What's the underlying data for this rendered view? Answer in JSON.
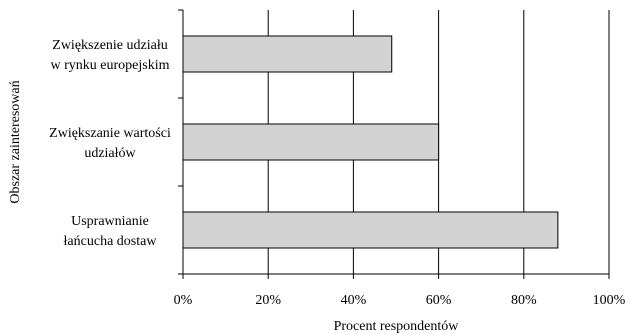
{
  "chart_data": {
    "type": "bar",
    "orientation": "horizontal",
    "title": "",
    "xlabel": "Procent respondentów",
    "ylabel": "Obszar zainteresowań",
    "categories": [
      [
        "Zwiększenie udziału",
        "w rynku europejskim"
      ],
      [
        "Zwiększanie wartości",
        "udziałów"
      ],
      [
        "Usprawnianie",
        "łańcucha dostaw"
      ]
    ],
    "values": [
      49,
      60,
      88
    ],
    "xlim": [
      0,
      100
    ],
    "xticks": [
      "0%",
      "20%",
      "40%",
      "60%",
      "80%",
      "100%"
    ],
    "grid": "vertical",
    "legend": "none",
    "colors": {
      "bar_fill": "#d3d3d3",
      "bar_stroke": "#000000",
      "grid": "#000000"
    }
  }
}
